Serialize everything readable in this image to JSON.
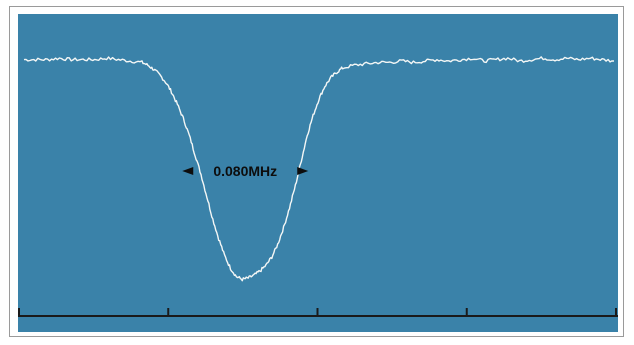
{
  "colors": {
    "screen_background": "#3a82a9",
    "trace": "#f4f7f6",
    "axis": "#1a1a1a",
    "annotation": "#0d0d0d"
  },
  "chart_data": {
    "type": "line",
    "title": "",
    "xlabel": "",
    "ylabel": "",
    "grid": false,
    "legend": "none",
    "x_tick_count": 5,
    "xlim": [
      0,
      1
    ],
    "ylim": [
      0,
      1
    ],
    "annotations": [
      {
        "text": "0.080MHz",
        "type": "linewidth-marker"
      }
    ],
    "series": [
      {
        "values": [
          [
            0.0,
            0.88
          ],
          [
            0.02,
            0.88
          ],
          [
            0.04,
            0.88
          ],
          [
            0.06,
            0.885
          ],
          [
            0.08,
            0.88
          ],
          [
            0.1,
            0.88
          ],
          [
            0.12,
            0.88
          ],
          [
            0.14,
            0.885
          ],
          [
            0.16,
            0.88
          ],
          [
            0.18,
            0.875
          ],
          [
            0.2,
            0.87
          ],
          [
            0.21,
            0.86
          ],
          [
            0.22,
            0.845
          ],
          [
            0.23,
            0.825
          ],
          [
            0.24,
            0.8
          ],
          [
            0.25,
            0.765
          ],
          [
            0.26,
            0.72
          ],
          [
            0.27,
            0.67
          ],
          [
            0.28,
            0.61
          ],
          [
            0.29,
            0.54
          ],
          [
            0.3,
            0.47
          ],
          [
            0.31,
            0.39
          ],
          [
            0.32,
            0.31
          ],
          [
            0.33,
            0.24
          ],
          [
            0.34,
            0.18
          ],
          [
            0.35,
            0.135
          ],
          [
            0.36,
            0.105
          ],
          [
            0.37,
            0.095
          ],
          [
            0.38,
            0.1
          ],
          [
            0.39,
            0.11
          ],
          [
            0.4,
            0.125
          ],
          [
            0.41,
            0.145
          ],
          [
            0.42,
            0.175
          ],
          [
            0.43,
            0.22
          ],
          [
            0.44,
            0.28
          ],
          [
            0.45,
            0.35
          ],
          [
            0.46,
            0.43
          ],
          [
            0.47,
            0.52
          ],
          [
            0.48,
            0.61
          ],
          [
            0.49,
            0.68
          ],
          [
            0.5,
            0.74
          ],
          [
            0.51,
            0.785
          ],
          [
            0.52,
            0.815
          ],
          [
            0.53,
            0.835
          ],
          [
            0.54,
            0.85
          ],
          [
            0.56,
            0.86
          ],
          [
            0.58,
            0.865
          ],
          [
            0.6,
            0.87
          ],
          [
            0.62,
            0.87
          ],
          [
            0.64,
            0.875
          ],
          [
            0.66,
            0.87
          ],
          [
            0.68,
            0.875
          ],
          [
            0.7,
            0.88
          ],
          [
            0.72,
            0.875
          ],
          [
            0.74,
            0.88
          ],
          [
            0.76,
            0.885
          ],
          [
            0.78,
            0.875
          ],
          [
            0.8,
            0.88
          ],
          [
            0.82,
            0.885
          ],
          [
            0.84,
            0.875
          ],
          [
            0.86,
            0.88
          ],
          [
            0.88,
            0.885
          ],
          [
            0.9,
            0.88
          ],
          [
            0.92,
            0.885
          ],
          [
            0.94,
            0.88
          ],
          [
            0.96,
            0.885
          ],
          [
            0.98,
            0.88
          ],
          [
            1.0,
            0.875
          ]
        ]
      }
    ]
  }
}
